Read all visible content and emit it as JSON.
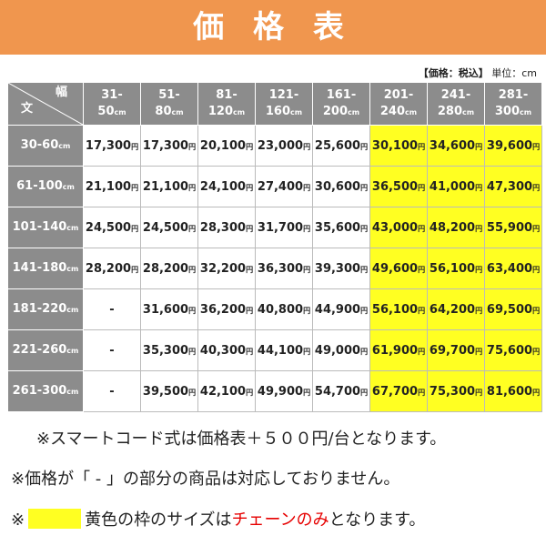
{
  "header": {
    "title": "価 格 表"
  },
  "note": {
    "tax": "【価格：税込】",
    "unit": "単位：cm"
  },
  "table": {
    "corner": {
      "length": "文",
      "width": "幅"
    },
    "columns": [
      {
        "top": "31-",
        "bottom": "50",
        "unit": "cm",
        "highlight": false
      },
      {
        "top": "51-",
        "bottom": "80",
        "unit": "cm",
        "highlight": false
      },
      {
        "top": "81-",
        "bottom": "120",
        "unit": "cm",
        "highlight": false
      },
      {
        "top": "121-",
        "bottom": "160",
        "unit": "cm",
        "highlight": false
      },
      {
        "top": "161-",
        "bottom": "200",
        "unit": "cm",
        "highlight": false
      },
      {
        "top": "201-",
        "bottom": "240",
        "unit": "cm",
        "highlight": true
      },
      {
        "top": "241-",
        "bottom": "280",
        "unit": "cm",
        "highlight": true
      },
      {
        "top": "281-",
        "bottom": "300",
        "unit": "cm",
        "highlight": true
      }
    ],
    "highlight_color": "#ffff22",
    "rows": [
      {
        "label": "30-60",
        "unit": "cm",
        "cells": [
          {
            "price": "17,300",
            "unit": "円"
          },
          {
            "price": "17,300",
            "unit": "円"
          },
          {
            "price": "20,100",
            "unit": "円"
          },
          {
            "price": "23,000",
            "unit": "円"
          },
          {
            "price": "25,600",
            "unit": "円"
          },
          {
            "price": "30,100",
            "unit": "円"
          },
          {
            "price": "34,600",
            "unit": "円"
          },
          {
            "price": "39,600",
            "unit": "円"
          }
        ]
      },
      {
        "label": "61-100",
        "unit": "cm",
        "cells": [
          {
            "price": "21,100",
            "unit": "円"
          },
          {
            "price": "21,100",
            "unit": "円"
          },
          {
            "price": "24,100",
            "unit": "円"
          },
          {
            "price": "27,400",
            "unit": "円"
          },
          {
            "price": "30,600",
            "unit": "円"
          },
          {
            "price": "36,500",
            "unit": "円"
          },
          {
            "price": "41,000",
            "unit": "円"
          },
          {
            "price": "47,300",
            "unit": "円"
          }
        ]
      },
      {
        "label": "101-140",
        "unit": "cm",
        "cells": [
          {
            "price": "24,500",
            "unit": "円"
          },
          {
            "price": "24,500",
            "unit": "円"
          },
          {
            "price": "28,300",
            "unit": "円"
          },
          {
            "price": "31,700",
            "unit": "円"
          },
          {
            "price": "35,600",
            "unit": "円"
          },
          {
            "price": "43,000",
            "unit": "円"
          },
          {
            "price": "48,200",
            "unit": "円"
          },
          {
            "price": "55,900",
            "unit": "円"
          }
        ]
      },
      {
        "label": "141-180",
        "unit": "cm",
        "cells": [
          {
            "price": "28,200",
            "unit": "円"
          },
          {
            "price": "28,200",
            "unit": "円"
          },
          {
            "price": "32,200",
            "unit": "円"
          },
          {
            "price": "36,300",
            "unit": "円"
          },
          {
            "price": "39,300",
            "unit": "円"
          },
          {
            "price": "49,600",
            "unit": "円"
          },
          {
            "price": "56,100",
            "unit": "円"
          },
          {
            "price": "63,400",
            "unit": "円"
          }
        ]
      },
      {
        "label": "181-220",
        "unit": "cm",
        "cells": [
          {
            "price": "-"
          },
          {
            "price": "31,600",
            "unit": "円"
          },
          {
            "price": "36,200",
            "unit": "円"
          },
          {
            "price": "40,800",
            "unit": "円"
          },
          {
            "price": "44,900",
            "unit": "円"
          },
          {
            "price": "56,100",
            "unit": "円"
          },
          {
            "price": "64,200",
            "unit": "円"
          },
          {
            "price": "69,500",
            "unit": "円"
          }
        ]
      },
      {
        "label": "221-260",
        "unit": "cm",
        "cells": [
          {
            "price": "-"
          },
          {
            "price": "35,300",
            "unit": "円"
          },
          {
            "price": "40,300",
            "unit": "円"
          },
          {
            "price": "44,100",
            "unit": "円"
          },
          {
            "price": "49,000",
            "unit": "円"
          },
          {
            "price": "61,900",
            "unit": "円"
          },
          {
            "price": "69,700",
            "unit": "円"
          },
          {
            "price": "75,600",
            "unit": "円"
          }
        ]
      },
      {
        "label": "261-300",
        "unit": "cm",
        "cells": [
          {
            "price": "-"
          },
          {
            "price": "39,500",
            "unit": "円"
          },
          {
            "price": "42,100",
            "unit": "円"
          },
          {
            "price": "49,900",
            "unit": "円"
          },
          {
            "price": "54,700",
            "unit": "円"
          },
          {
            "price": "67,700",
            "unit": "円"
          },
          {
            "price": "75,300",
            "unit": "円"
          },
          {
            "price": "81,600",
            "unit": "円"
          }
        ]
      }
    ]
  },
  "footnotes": {
    "smart_cord": "※スマートコード式は価格表＋５００円/台となります。",
    "unavailable": "※価格が「 - 」の部分の商品は対応しておりません。",
    "yellow": {
      "mark": "※",
      "before": "黄色の枠のサイズは",
      "emphasis": "チェーンのみ",
      "after": "となります。"
    }
  }
}
